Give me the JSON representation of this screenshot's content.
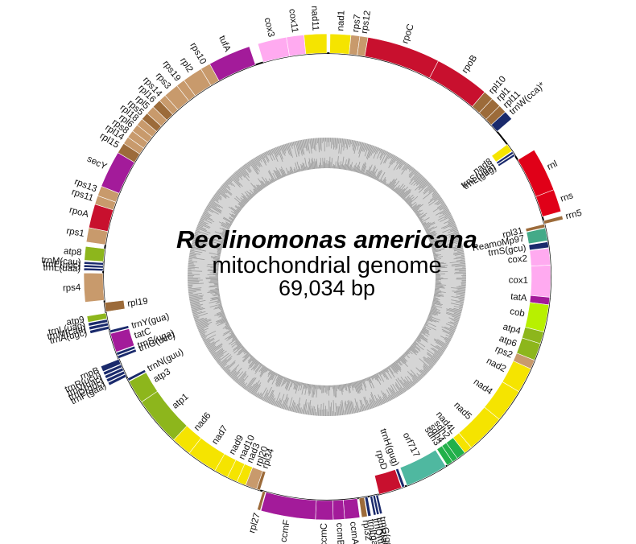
{
  "title": {
    "species": "Reclinomonas americana",
    "subtitle": "mitochondrial genome",
    "size": "69,034 bp"
  },
  "legend_colors": {
    "rp": "#c89a6c",
    "rp_dark": "#9c6b3a",
    "rpo": "#c8102e",
    "nad": "#f5e400",
    "sdh": "#22b04a",
    "cox": "#ffaaf0",
    "atp": "#8db61c",
    "cob": "#b8f000",
    "ccm": "#a31b9a",
    "tat": "#a31b9a",
    "rrn": "#e00018",
    "trn": "#1a2a6c",
    "orf": "#4fb8a0",
    "other": "#44aa88",
    "gc_ring": "#d5d5d5",
    "gc_fill": "#9a9a9a"
  },
  "genes": [
    {
      "name": "nad1",
      "start": 0.5,
      "end": 3.8,
      "strand": "out",
      "cat": "nad"
    },
    {
      "name": "rps7",
      "start": 3.8,
      "end": 5.2,
      "strand": "out",
      "cat": "rp"
    },
    {
      "name": "rps12",
      "start": 5.2,
      "end": 6.5,
      "strand": "out",
      "cat": "rp"
    },
    {
      "name": "rpoC",
      "start": 6.5,
      "end": 18.2,
      "strand": "out",
      "cat": "rpo"
    },
    {
      "name": "rpoB",
      "start": 18.2,
      "end": 27.0,
      "strand": "out",
      "cat": "rpo"
    },
    {
      "name": "rpl10",
      "start": 27.0,
      "end": 28.6,
      "strand": "out",
      "cat": "rp_dark"
    },
    {
      "name": "rpl1",
      "start": 28.6,
      "end": 30.2,
      "strand": "out",
      "cat": "rp_dark"
    },
    {
      "name": "rpl11",
      "start": 30.2,
      "end": 31.5,
      "strand": "out",
      "cat": "rp_dark"
    },
    {
      "name": "trnW(cca)*",
      "start": 31.5,
      "end": 33.0,
      "strand": "out",
      "cat": "trn"
    },
    {
      "name": "nad8",
      "start": 35.8,
      "end": 37.2,
      "strand": "in",
      "cat": "nad"
    },
    {
      "name": "trnS(uga)",
      "start": 37.3,
      "end": 37.7,
      "strand": "in",
      "cat": "trn"
    },
    {
      "name": "trnL(gag)",
      "start": 37.8,
      "end": 38.2,
      "strand": "in",
      "cat": "trn"
    },
    {
      "name": "rnl",
      "start": 39.0,
      "end": 46.0,
      "strand": "out",
      "cat": "rrn"
    },
    {
      "name": "rns",
      "start": 46.0,
      "end": 49.6,
      "strand": "out",
      "cat": "rrn"
    },
    {
      "name": "rrn5",
      "start": 50.3,
      "end": 50.9,
      "strand": "out",
      "cat": "rp_dark"
    },
    {
      "name": "rpl31",
      "start": 50.9,
      "end": 51.5,
      "strand": "in",
      "cat": "rp_dark"
    },
    {
      "name": "ReamoMp97",
      "start": 51.6,
      "end": 53.8,
      "strand": "in",
      "cat": "other"
    },
    {
      "name": "trnS(gcu)",
      "start": 54.0,
      "end": 55.0,
      "strand": "in",
      "cat": "trn"
    },
    {
      "name": "cox2",
      "start": 55.1,
      "end": 58.0,
      "strand": "in",
      "cat": "cox"
    },
    {
      "name": "cox1",
      "start": 58.0,
      "end": 63.5,
      "strand": "in",
      "cat": "cox"
    },
    {
      "name": "tatA",
      "start": 63.5,
      "end": 64.8,
      "strand": "in",
      "cat": "tat"
    },
    {
      "name": "cob",
      "start": 64.8,
      "end": 69.5,
      "strand": "in",
      "cat": "cob"
    },
    {
      "name": "atp4",
      "start": 69.5,
      "end": 71.6,
      "strand": "in",
      "cat": "atp"
    },
    {
      "name": "atp6",
      "start": 71.6,
      "end": 74.6,
      "strand": "in",
      "cat": "atp"
    },
    {
      "name": "rps2",
      "start": 74.6,
      "end": 76.2,
      "strand": "in",
      "cat": "rp"
    },
    {
      "name": "nad2",
      "start": 76.2,
      "end": 80.6,
      "strand": "in",
      "cat": "nad"
    },
    {
      "name": "nad4",
      "start": 80.6,
      "end": 86.4,
      "strand": "in",
      "cat": "nad"
    },
    {
      "name": "nad5",
      "start": 86.4,
      "end": 93.2,
      "strand": "in",
      "cat": "nad"
    },
    {
      "name": "nad4L",
      "start": 93.2,
      "end": 94.6,
      "strand": "in",
      "cat": "nad"
    },
    {
      "name": "sdh2",
      "start": 94.6,
      "end": 96.2,
      "strand": "in",
      "cat": "sdh"
    },
    {
      "name": "sdh4",
      "start": 96.2,
      "end": 97.2,
      "strand": "in",
      "cat": "sdh"
    },
    {
      "name": "sdh3",
      "start": 97.2,
      "end": 98.3,
      "strand": "in",
      "cat": "sdh"
    },
    {
      "name": "orf717",
      "start": 98.6,
      "end": 106.0,
      "strand": "in",
      "cat": "orf"
    },
    {
      "name": "trnH(gug)",
      "start": 106.4,
      "end": 106.9,
      "strand": "in",
      "cat": "trn"
    },
    {
      "name": "rpoD",
      "start": 107.0,
      "end": 111.0,
      "strand": "in",
      "cat": "rpo"
    },
    {
      "name": "trnG(gcc)",
      "start": 111.2,
      "end": 111.6,
      "strand": "out",
      "cat": "trn"
    },
    {
      "name": "trnR(acg)",
      "start": 111.7,
      "end": 112.1,
      "strand": "out",
      "cat": "trn"
    },
    {
      "name": "trnQ(uug)",
      "start": 112.2,
      "end": 112.6,
      "strand": "out",
      "cat": "trn"
    },
    {
      "name": "trnI(gau)",
      "start": 113.0,
      "end": 113.5,
      "strand": "out",
      "cat": "trn"
    },
    {
      "name": "rpl32",
      "start": 113.6,
      "end": 114.5,
      "strand": "out",
      "cat": "rp_dark"
    },
    {
      "name": "ccmA",
      "start": 114.8,
      "end": 117.2,
      "strand": "out",
      "cat": "ccm"
    },
    {
      "name": "ccmB",
      "start": 117.2,
      "end": 119.0,
      "strand": "out",
      "cat": "ccm"
    },
    {
      "name": "ccmC",
      "start": 119.0,
      "end": 121.8,
      "strand": "out",
      "cat": "ccm"
    },
    {
      "name": "ccmF",
      "start": 121.8,
      "end": 130.5,
      "strand": "out",
      "cat": "ccm"
    },
    {
      "name": "rpl27",
      "start": 130.6,
      "end": 131.1,
      "strand": "out",
      "cat": "rp_dark"
    },
    {
      "name": "rpl34",
      "start": 131.6,
      "end": 132.2,
      "strand": "in",
      "cat": "rp_dark"
    },
    {
      "name": "rpl20",
      "start": 132.2,
      "end": 134.2,
      "strand": "in",
      "cat": "rp"
    },
    {
      "name": "nad3",
      "start": 134.2,
      "end": 135.8,
      "strand": "in",
      "cat": "nad"
    },
    {
      "name": "nad10",
      "start": 135.8,
      "end": 137.6,
      "strand": "in",
      "cat": "nad"
    },
    {
      "name": "nad9",
      "start": 137.6,
      "end": 140.0,
      "strand": "in",
      "cat": "nad"
    },
    {
      "name": "nad7",
      "start": 140.0,
      "end": 145.3,
      "strand": "in",
      "cat": "nad"
    },
    {
      "name": "nad6",
      "start": 145.3,
      "end": 148.8,
      "strand": "in",
      "cat": "nad"
    },
    {
      "name": "atp1",
      "start": 148.8,
      "end": 157.3,
      "strand": "in",
      "cat": "atp"
    },
    {
      "name": "atp3",
      "start": 157.3,
      "end": 161.4,
      "strand": "in",
      "cat": "atp"
    },
    {
      "name": "trnN(guu)",
      "start": 161.5,
      "end": 162.0,
      "strand": "in",
      "cat": "trn"
    },
    {
      "name": "trnF(gaa)",
      "start": 162.3,
      "end": 162.8,
      "strand": "out",
      "cat": "trn"
    },
    {
      "name": "trnD(guc)",
      "start": 162.9,
      "end": 163.4,
      "strand": "out",
      "cat": "trn"
    },
    {
      "name": "trnV(uac)",
      "start": 163.5,
      "end": 164.0,
      "strand": "out",
      "cat": "trn"
    },
    {
      "name": "trnR(ucu)",
      "start": 164.1,
      "end": 164.6,
      "strand": "out",
      "cat": "trn"
    },
    {
      "name": "rnpB",
      "start": 164.7,
      "end": 165.6,
      "strand": "out",
      "cat": "trn"
    },
    {
      "name": "trnG(ucc)",
      "start": 165.7,
      "end": 166.2,
      "strand": "in",
      "cat": "trn"
    },
    {
      "name": "trnS(uga)",
      "start": 166.3,
      "end": 166.8,
      "strand": "in",
      "cat": "trn"
    },
    {
      "name": "tatC",
      "start": 166.9,
      "end": 170.2,
      "strand": "in",
      "cat": "tat"
    },
    {
      "name": "trnY(gua)",
      "start": 170.3,
      "end": 170.8,
      "strand": "in",
      "cat": "trn"
    },
    {
      "name": "trnA(ugc)",
      "start": 171.0,
      "end": 171.5,
      "strand": "out",
      "cat": "trn"
    },
    {
      "name": "trnM(cau)",
      "start": 171.6,
      "end": 172.1,
      "strand": "out",
      "cat": "trn"
    },
    {
      "name": "trnL(uag)",
      "start": 172.2,
      "end": 172.7,
      "strand": "out",
      "cat": "trn"
    },
    {
      "name": "atp9",
      "start": 172.8,
      "end": 173.8,
      "strand": "out",
      "cat": "atp"
    },
    {
      "name": "rpl19",
      "start": 174.0,
      "end": 175.6,
      "strand": "in",
      "cat": "rp_dark"
    },
    {
      "name": "rps4",
      "start": 176.0,
      "end": 180.6,
      "strand": "out",
      "cat": "rp"
    },
    {
      "name": "trnL(uaa)",
      "start": 181.0,
      "end": 181.4,
      "strand": "out",
      "cat": "trn"
    },
    {
      "name": "trnE(uuc)",
      "start": 181.5,
      "end": 181.9,
      "strand": "out",
      "cat": "trn"
    },
    {
      "name": "trnM(cau)",
      "start": 182.0,
      "end": 182.4,
      "strand": "out",
      "cat": "trn"
    },
    {
      "name": "atp8",
      "start": 182.6,
      "end": 184.8,
      "strand": "out",
      "cat": "atp"
    },
    {
      "name": "rps1",
      "start": 185.5,
      "end": 187.8,
      "strand": "out",
      "cat": "rp"
    },
    {
      "name": "rpoA",
      "start": 187.8,
      "end": 191.6,
      "strand": "out",
      "cat": "rpo"
    },
    {
      "name": "rps11",
      "start": 191.6,
      "end": 193.0,
      "strand": "out",
      "cat": "rp"
    },
    {
      "name": "rps13",
      "start": 193.0,
      "end": 194.6,
      "strand": "out",
      "cat": "rp"
    },
    {
      "name": "secY",
      "start": 194.6,
      "end": 200.5,
      "strand": "out",
      "cat": "ccm"
    },
    {
      "name": "rpl15",
      "start": 200.5,
      "end": 202.2,
      "strand": "out",
      "cat": "rp_dark"
    },
    {
      "name": "rpl14",
      "start": 202.2,
      "end": 203.4,
      "strand": "out",
      "cat": "rp"
    },
    {
      "name": "rps8",
      "start": 203.4,
      "end": 204.6,
      "strand": "out",
      "cat": "rp"
    },
    {
      "name": "rpl6",
      "start": 204.6,
      "end": 205.8,
      "strand": "out",
      "cat": "rp"
    },
    {
      "name": "rpl18",
      "start": 205.8,
      "end": 207.0,
      "strand": "out",
      "cat": "rp"
    },
    {
      "name": "rps5",
      "start": 207.0,
      "end": 208.2,
      "strand": "out",
      "cat": "rp_dark"
    },
    {
      "name": "rpl5",
      "start": 208.2,
      "end": 209.6,
      "strand": "out",
      "cat": "rp"
    },
    {
      "name": "rpl16",
      "start": 209.6,
      "end": 211.0,
      "strand": "out",
      "cat": "rp_dark"
    },
    {
      "name": "rps14",
      "start": 211.0,
      "end": 212.2,
      "strand": "out",
      "cat": "rp"
    },
    {
      "name": "rps3",
      "start": 212.2,
      "end": 214.6,
      "strand": "out",
      "cat": "rp"
    },
    {
      "name": "rps19",
      "start": 214.6,
      "end": 216.0,
      "strand": "out",
      "cat": "rp"
    },
    {
      "name": "rpl2",
      "start": 216.0,
      "end": 219.2,
      "strand": "out",
      "cat": "rp"
    },
    {
      "name": "rps10",
      "start": 219.2,
      "end": 220.8,
      "strand": "out",
      "cat": "rp"
    },
    {
      "name": "tufA",
      "start": 220.8,
      "end": 227.6,
      "strand": "out",
      "cat": "ccm"
    },
    {
      "name": "cox3",
      "start": 229.0,
      "end": 233.6,
      "strand": "out",
      "cat": "cox"
    },
    {
      "name": "cox11",
      "start": 233.6,
      "end": 236.4,
      "strand": "out",
      "cat": "cox"
    },
    {
      "name": "nad11",
      "start": 236.4,
      "end": 240.0,
      "strand": "out",
      "cat": "nad"
    }
  ]
}
